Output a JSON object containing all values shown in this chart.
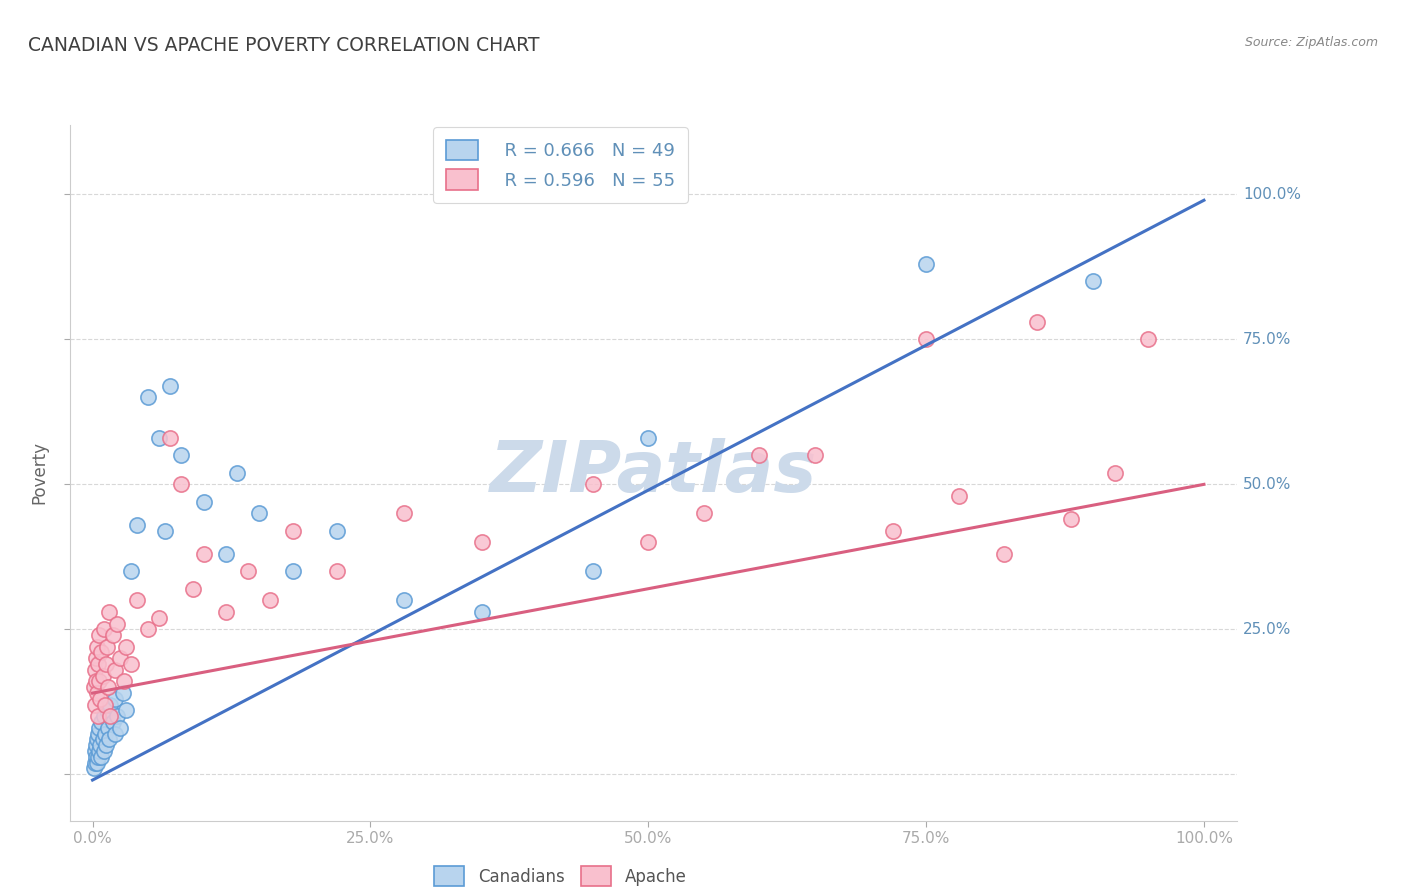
{
  "title": "CANADIAN VS APACHE POVERTY CORRELATION CHART",
  "source": "Source: ZipAtlas.com",
  "canadians_label": "Canadians",
  "apache_label": "Apache",
  "ylabel": "Poverty",
  "blue_R": "R = 0.666",
  "blue_N": "N = 49",
  "pink_R": "R = 0.596",
  "pink_N": "N = 55",
  "blue_fill": "#b8d4ee",
  "pink_fill": "#f9c0ce",
  "blue_edge": "#5b9bd5",
  "pink_edge": "#e8708a",
  "blue_line": "#4472c4",
  "pink_line": "#d95f80",
  "watermark_color": "#ccdaea",
  "title_color": "#404040",
  "axis_label_color": "#6090b8",
  "tick_color": "#6090b8",
  "grid_color": "#d8d8d8",
  "source_color": "#888888",
  "blue_x": [
    0.001,
    0.002,
    0.002,
    0.003,
    0.003,
    0.004,
    0.004,
    0.005,
    0.005,
    0.006,
    0.006,
    0.007,
    0.008,
    0.008,
    0.009,
    0.01,
    0.01,
    0.011,
    0.012,
    0.013,
    0.014,
    0.015,
    0.016,
    0.018,
    0.02,
    0.02,
    0.022,
    0.025,
    0.027,
    0.03,
    0.035,
    0.04,
    0.05,
    0.06,
    0.065,
    0.07,
    0.08,
    0.1,
    0.12,
    0.13,
    0.15,
    0.18,
    0.22,
    0.28,
    0.35,
    0.45,
    0.5,
    0.75,
    0.9
  ],
  "blue_y": [
    0.01,
    0.02,
    0.04,
    0.03,
    0.05,
    0.02,
    0.06,
    0.03,
    0.07,
    0.04,
    0.08,
    0.05,
    0.03,
    0.09,
    0.06,
    0.04,
    0.1,
    0.07,
    0.05,
    0.11,
    0.08,
    0.06,
    0.12,
    0.09,
    0.07,
    0.13,
    0.1,
    0.08,
    0.14,
    0.11,
    0.35,
    0.43,
    0.65,
    0.58,
    0.42,
    0.67,
    0.55,
    0.47,
    0.38,
    0.52,
    0.45,
    0.35,
    0.42,
    0.3,
    0.28,
    0.35,
    0.58,
    0.88,
    0.85
  ],
  "pink_x": [
    0.001,
    0.002,
    0.002,
    0.003,
    0.003,
    0.004,
    0.004,
    0.005,
    0.005,
    0.006,
    0.006,
    0.007,
    0.008,
    0.009,
    0.01,
    0.011,
    0.012,
    0.013,
    0.014,
    0.015,
    0.016,
    0.018,
    0.02,
    0.022,
    0.025,
    0.028,
    0.03,
    0.035,
    0.04,
    0.05,
    0.06,
    0.07,
    0.08,
    0.09,
    0.1,
    0.12,
    0.14,
    0.16,
    0.18,
    0.22,
    0.28,
    0.35,
    0.45,
    0.55,
    0.65,
    0.72,
    0.78,
    0.82,
    0.88,
    0.92,
    0.5,
    0.6,
    0.75,
    0.85,
    0.95
  ],
  "pink_y": [
    0.15,
    0.18,
    0.12,
    0.16,
    0.2,
    0.14,
    0.22,
    0.1,
    0.19,
    0.16,
    0.24,
    0.13,
    0.21,
    0.17,
    0.25,
    0.12,
    0.19,
    0.22,
    0.15,
    0.28,
    0.1,
    0.24,
    0.18,
    0.26,
    0.2,
    0.16,
    0.22,
    0.19,
    0.3,
    0.25,
    0.27,
    0.58,
    0.5,
    0.32,
    0.38,
    0.28,
    0.35,
    0.3,
    0.42,
    0.35,
    0.45,
    0.4,
    0.5,
    0.45,
    0.55,
    0.42,
    0.48,
    0.38,
    0.44,
    0.52,
    0.4,
    0.55,
    0.75,
    0.78,
    0.75
  ]
}
